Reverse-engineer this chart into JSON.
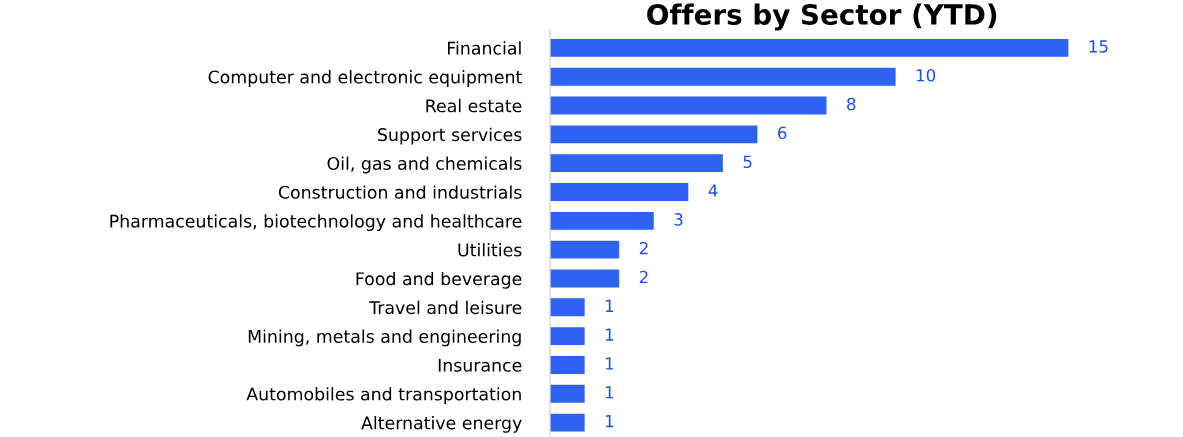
{
  "chart_data": {
    "type": "bar",
    "orientation": "horizontal",
    "title": "Offers by Sector (YTD)",
    "categories": [
      "Financial",
      "Computer and electronic equipment",
      "Real estate",
      "Support services",
      "Oil, gas and chemicals",
      "Construction and industrials",
      "Pharmaceuticals, biotechnology and healthcare",
      "Utilities",
      "Food and beverage",
      "Travel and leisure",
      "Mining, metals and engineering",
      "Insurance",
      "Automobiles and transportation",
      "Alternative energy"
    ],
    "values": [
      15,
      10,
      8,
      6,
      5,
      4,
      3,
      2,
      2,
      1,
      1,
      1,
      1,
      1
    ],
    "color": "#2e63f2",
    "data_labels": true,
    "tick_labels": "y",
    "grid": false,
    "legend": false
  }
}
